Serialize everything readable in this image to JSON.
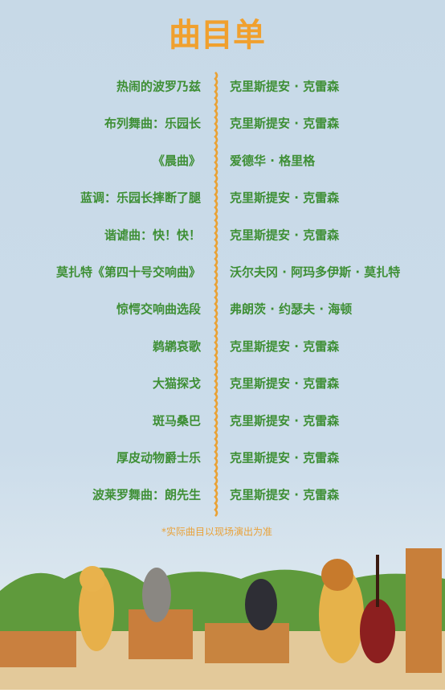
{
  "header": {
    "title": "曲目单"
  },
  "program": [
    {
      "piece": "热闹的波罗乃兹",
      "composer": "克里斯提安 · 克雷森"
    },
    {
      "piece": "布列舞曲：乐园长",
      "composer": "克里斯提安 · 克雷森"
    },
    {
      "piece": "《晨曲》",
      "composer": "爱德华 · 格里格"
    },
    {
      "piece": "蓝调：乐园长摔断了腿",
      "composer": "克里斯提安 · 克雷森"
    },
    {
      "piece": "谐谑曲：快！快！",
      "composer": "克里斯提安 · 克雷森"
    },
    {
      "piece": "莫扎特《第四十号交响曲》",
      "composer": "沃尔夫冈 · 阿玛多伊斯 · 莫扎特"
    },
    {
      "piece": "惊愕交响曲选段",
      "composer": "弗朗茨 · 约瑟夫 · 海顿"
    },
    {
      "piece": "鹈鹕哀歌",
      "composer": "克里斯提安 · 克雷森"
    },
    {
      "piece": "大猫探戈",
      "composer": "克里斯提安 · 克雷森"
    },
    {
      "piece": "斑马桑巴",
      "composer": "克里斯提安 · 克雷森"
    },
    {
      "piece": "厚皮动物爵士乐",
      "composer": "克里斯提安 · 克雷森"
    },
    {
      "piece": "波莱罗舞曲：朗先生",
      "composer": "克里斯提安 · 克雷森"
    }
  ],
  "note": "*实际曲目以现场演出为准"
}
